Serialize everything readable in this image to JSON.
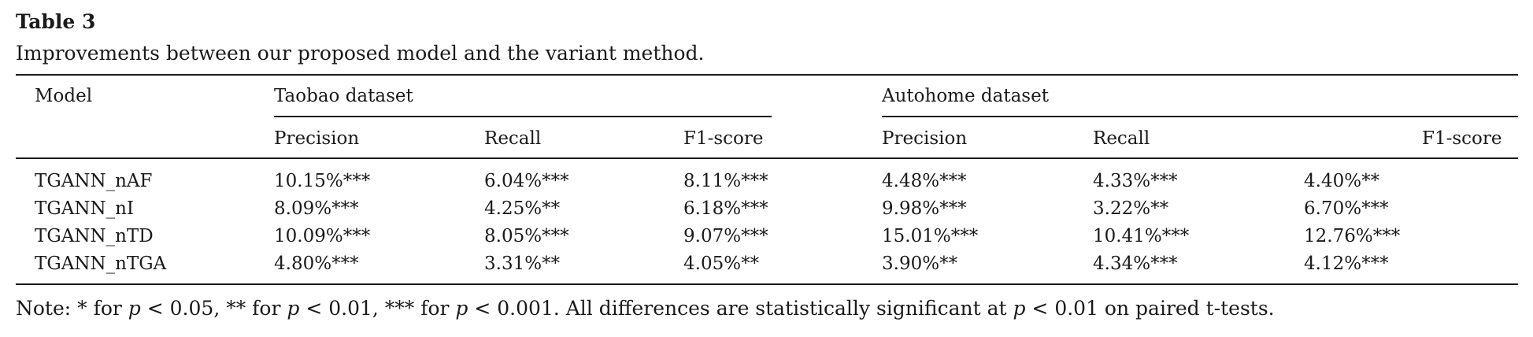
{
  "caption": {
    "label": "Table 3",
    "text": "Improvements between our proposed model and the variant method."
  },
  "header": {
    "model": "Model",
    "group1": "Taobao dataset",
    "group2": "Autohome dataset",
    "sub": [
      "Precision",
      "Recall",
      "F1-score",
      "Precision",
      "Recall",
      "F1-score"
    ]
  },
  "rows": [
    {
      "model": "TGANN_nAF",
      "values": [
        "10.15%***",
        "6.04%***",
        "8.11%***",
        "4.48%***",
        "4.33%***",
        "4.40%**"
      ]
    },
    {
      "model": "TGANN_nI",
      "values": [
        "8.09%***",
        "4.25%**",
        "6.18%***",
        "9.98%***",
        "3.22%**",
        "6.70%***"
      ]
    },
    {
      "model": "TGANN_nTD",
      "values": [
        "10.09%***",
        "8.05%***",
        "9.07%***",
        "15.01%***",
        "10.41%***",
        "12.76%***"
      ]
    },
    {
      "model": "TGANN_nTGA",
      "values": [
        "4.80%***",
        "3.31%**",
        "4.05%**",
        "3.90%**",
        "4.34%***",
        "4.12%***"
      ]
    }
  ],
  "note": {
    "part1": "Note: * for ",
    "p": "p",
    "part2": " < 0.05, ** for ",
    "part3": " < 0.01, *** for ",
    "part4": " < 0.001. All differences are statistically significant at ",
    "part5": " < 0.01 on paired t-tests."
  }
}
